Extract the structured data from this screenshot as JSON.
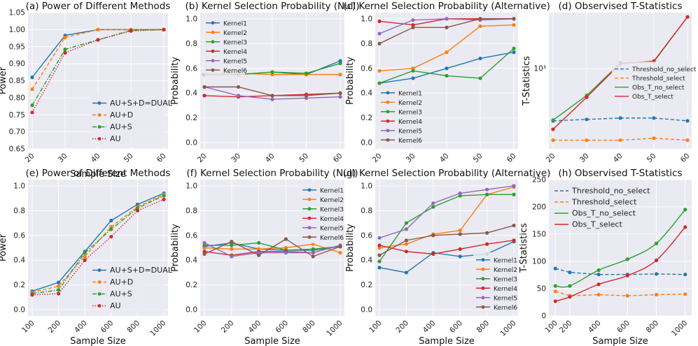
{
  "colors": {
    "blue": "#1f77b4",
    "orange": "#ff7f0e",
    "green": "#2ca02c",
    "red": "#d62728",
    "purple": "#9467bd",
    "brown": "#8c564b",
    "panel_bg": "#eaeaf2",
    "grid": "#ffffff"
  },
  "chart_data": [
    {
      "id": "a",
      "type": "line",
      "title": "(a) Power of Different Methods",
      "xlabel": "Sample Size",
      "ylabel": "Power",
      "categories": [
        "20",
        "30",
        "40",
        "50",
        "60"
      ],
      "ylim": [
        0.65,
        1.05
      ],
      "yticks": [
        "0.65",
        "0.70",
        "0.75",
        "0.80",
        "0.85",
        "0.90",
        "0.95",
        "1.00",
        "1.05"
      ],
      "legend_pos": "lower-right",
      "series": [
        {
          "name": "AU+S+D=DUAL",
          "color": "blue",
          "dash": "solid",
          "values": [
            0.86,
            0.983,
            1.0,
            1.0,
            1.0
          ]
        },
        {
          "name": "AU+D",
          "color": "orange",
          "dash": "dashed",
          "values": [
            0.825,
            0.977,
            1.0,
            1.0,
            1.0
          ]
        },
        {
          "name": "AU+S",
          "color": "green",
          "dash": "dashdot",
          "values": [
            0.778,
            0.942,
            0.97,
            0.998,
            1.0
          ]
        },
        {
          "name": "AU",
          "color": "red",
          "dash": "dotted",
          "values": [
            0.757,
            0.932,
            0.97,
            0.996,
            1.0
          ]
        }
      ]
    },
    {
      "id": "b",
      "type": "line",
      "title": "(b) Kernel Selection Probability (Null)",
      "xlabel": "",
      "ylabel": "Probability",
      "categories": [
        "20",
        "30",
        "40",
        "50",
        "60"
      ],
      "ylim": [
        -0.05,
        1.05
      ],
      "yticks": [
        "0.0",
        "0.2",
        "0.4",
        "0.6",
        "0.8",
        "1.0"
      ],
      "legend_pos": "upper-left",
      "series": [
        {
          "name": "Kernel1",
          "color": "blue",
          "values": [
            0.55,
            0.55,
            0.57,
            0.55,
            0.66
          ]
        },
        {
          "name": "Kernel2",
          "color": "orange",
          "values": [
            0.55,
            0.56,
            0.55,
            0.55,
            0.55
          ]
        },
        {
          "name": "Kernel3",
          "color": "green",
          "values": [
            0.55,
            0.55,
            0.57,
            0.56,
            0.64
          ]
        },
        {
          "name": "Kernel4",
          "color": "red",
          "values": [
            0.38,
            0.37,
            0.38,
            0.39,
            0.4
          ]
        },
        {
          "name": "Kernel5",
          "color": "purple",
          "values": [
            0.45,
            0.38,
            0.35,
            0.36,
            0.37
          ]
        },
        {
          "name": "Kernel6",
          "color": "brown",
          "values": [
            0.45,
            0.45,
            0.38,
            0.38,
            0.4
          ]
        }
      ]
    },
    {
      "id": "c",
      "type": "line",
      "title": "(c) Kernel Selection Probability (Alternative)",
      "xlabel": "",
      "ylabel": "Probability",
      "categories": [
        "20",
        "30",
        "40",
        "50",
        "60"
      ],
      "ylim": [
        -0.05,
        1.05
      ],
      "yticks": [
        "0.0",
        "0.2",
        "0.4",
        "0.6",
        "0.8",
        "1.0"
      ],
      "legend_pos": "lower-left",
      "series": [
        {
          "name": "Kernel1",
          "color": "blue",
          "values": [
            0.48,
            0.52,
            0.6,
            0.68,
            0.73
          ]
        },
        {
          "name": "Kernel2",
          "color": "orange",
          "values": [
            0.58,
            0.6,
            0.73,
            0.94,
            0.95
          ]
        },
        {
          "name": "Kernel3",
          "color": "green",
          "values": [
            0.48,
            0.58,
            0.54,
            0.52,
            0.76
          ]
        },
        {
          "name": "Kernel4",
          "color": "red",
          "values": [
            0.98,
            0.95,
            1.0,
            1.0,
            1.0
          ]
        },
        {
          "name": "Kernel5",
          "color": "purple",
          "values": [
            0.88,
            0.99,
            1.0,
            0.99,
            1.0
          ]
        },
        {
          "name": "Kernel6",
          "color": "brown",
          "values": [
            0.8,
            0.93,
            0.93,
            1.0,
            1.0
          ]
        }
      ]
    },
    {
      "id": "d",
      "type": "line",
      "title": "(d) Observised T-Statistics",
      "xlabel": "",
      "ylabel": "T-Statistics",
      "yscale": "log",
      "categories": [
        "20",
        "30",
        "40",
        "50",
        "60"
      ],
      "ylim": [
        240,
        2700
      ],
      "yticks_log": [
        {
          "label": "10³",
          "value": 1000
        }
      ],
      "legend_pos": "center-right",
      "series": [
        {
          "name": "Threshold_no_select",
          "color": "blue",
          "dash": "dashed",
          "values": [
            395,
            405,
            415,
            415,
            395
          ]
        },
        {
          "name": "Threshold_select",
          "color": "orange",
          "dash": "dashed",
          "values": [
            280,
            280,
            280,
            290,
            280
          ]
        },
        {
          "name": "Obs_T_no_select",
          "color": "green",
          "dash": "solid",
          "values": [
            400,
            620,
            1100,
            1130,
            2500
          ]
        },
        {
          "name": "Obs_T_select",
          "color": "red",
          "dash": "solid",
          "values": [
            340,
            600,
            1090,
            1140,
            2500
          ]
        }
      ]
    },
    {
      "id": "e",
      "type": "line",
      "title": "(e) Power of Different Methods",
      "xlabel": "Sample Size",
      "ylabel": "Power",
      "categories": [
        "100",
        "200",
        "400",
        "600",
        "800",
        "1000"
      ],
      "ylim": [
        -0.05,
        1.05
      ],
      "yticks": [
        "0.0",
        "0.2",
        "0.4",
        "0.6",
        "0.8",
        "1.0"
      ],
      "legend_pos": "lower-right",
      "series": [
        {
          "name": "AU+S+D=DUAL",
          "color": "blue",
          "dash": "solid",
          "values": [
            0.15,
            0.22,
            0.47,
            0.72,
            0.85,
            0.94
          ]
        },
        {
          "name": "AU+D",
          "color": "orange",
          "dash": "dashed",
          "values": [
            0.14,
            0.19,
            0.43,
            0.67,
            0.83,
            0.93
          ]
        },
        {
          "name": "AU+S",
          "color": "green",
          "dash": "dashdot",
          "values": [
            0.13,
            0.16,
            0.46,
            0.65,
            0.82,
            0.92
          ]
        },
        {
          "name": "AU",
          "color": "red",
          "dash": "dotted",
          "values": [
            0.12,
            0.13,
            0.4,
            0.59,
            0.8,
            0.89
          ]
        }
      ]
    },
    {
      "id": "f",
      "type": "line",
      "title": "(f) Kernel Selection Probability (Null)",
      "xlabel": "Sample Size",
      "ylabel": "Probability",
      "categories": [
        "100",
        "200",
        "400",
        "600",
        "800",
        "1000"
      ],
      "ylim": [
        -0.05,
        1.05
      ],
      "yticks": [
        "0.0",
        "0.2",
        "0.4",
        "0.6",
        "0.8",
        "1.0"
      ],
      "legend_pos": "upper-right",
      "series": [
        {
          "name": "Kernel1",
          "color": "blue",
          "values": [
            0.51,
            0.54,
            0.49,
            0.48,
            0.48,
            0.51
          ]
        },
        {
          "name": "Kernel2",
          "color": "orange",
          "values": [
            0.5,
            0.49,
            0.49,
            0.5,
            0.53,
            0.46
          ]
        },
        {
          "name": "Kernel3",
          "color": "green",
          "values": [
            0.52,
            0.52,
            0.54,
            0.48,
            0.49,
            0.51
          ]
        },
        {
          "name": "Kernel4",
          "color": "red",
          "values": [
            0.47,
            0.44,
            0.47,
            0.47,
            0.46,
            0.52
          ]
        },
        {
          "name": "Kernel5",
          "color": "purple",
          "values": [
            0.54,
            0.43,
            0.46,
            0.46,
            0.46,
            0.52
          ]
        },
        {
          "name": "Kernel6",
          "color": "brown",
          "values": [
            0.45,
            0.55,
            0.44,
            0.57,
            0.43,
            0.51
          ]
        }
      ]
    },
    {
      "id": "g",
      "type": "line",
      "title": "(g) Kernel Selection Probability (Alternative)",
      "xlabel": "Sample Size",
      "ylabel": "Probability",
      "categories": [
        "100",
        "200",
        "400",
        "600",
        "800",
        "1000"
      ],
      "ylim": [
        -0.05,
        1.05
      ],
      "yticks": [
        "0.0",
        "0.2",
        "0.4",
        "0.6",
        "0.8",
        "1.0"
      ],
      "legend_pos": "lower-right",
      "series": [
        {
          "name": "Kernel1",
          "color": "blue",
          "values": [
            0.34,
            0.3,
            0.46,
            0.43,
            0.45,
            0.55
          ]
        },
        {
          "name": "Kernel2",
          "color": "orange",
          "values": [
            0.5,
            0.53,
            0.61,
            0.64,
            0.93,
            0.99
          ]
        },
        {
          "name": "Kernel3",
          "color": "green",
          "values": [
            0.39,
            0.7,
            0.83,
            0.92,
            0.93,
            0.93
          ]
        },
        {
          "name": "Kernel4",
          "color": "red",
          "values": [
            0.52,
            0.47,
            0.45,
            0.49,
            0.53,
            0.56
          ]
        },
        {
          "name": "Kernel5",
          "color": "purple",
          "values": [
            0.58,
            0.65,
            0.86,
            0.94,
            0.97,
            1.0
          ]
        },
        {
          "name": "Kernel6",
          "color": "brown",
          "values": [
            0.44,
            0.56,
            0.6,
            0.61,
            0.62,
            0.68
          ]
        }
      ]
    },
    {
      "id": "h",
      "type": "line",
      "title": "(h) Observised T-Statistics",
      "xlabel": "Sample Size",
      "ylabel": "T-Statistics",
      "x": [
        100,
        200,
        400,
        600,
        800,
        1000
      ],
      "categories": [
        "100",
        "200",
        "400",
        "600",
        "800",
        "1000"
      ],
      "xlim": [
        55,
        1045
      ],
      "ylim": [
        0,
        250
      ],
      "yticks": [
        "0",
        "50",
        "100",
        "150",
        "200",
        "250"
      ],
      "legend_pos": "upper-left",
      "series": [
        {
          "name": "Threshold_no_select",
          "color": "blue",
          "dash": "dashed",
          "values": [
            87,
            80,
            76,
            76,
            77,
            76
          ]
        },
        {
          "name": "Threshold_select",
          "color": "orange",
          "dash": "dashed",
          "values": [
            45,
            37,
            39,
            37,
            39,
            40
          ]
        },
        {
          "name": "Obs_T_no_select",
          "color": "green",
          "dash": "solid",
          "values": [
            55,
            55,
            84,
            104,
            133,
            195
          ]
        },
        {
          "name": "Obs_T_select",
          "color": "red",
          "dash": "solid",
          "values": [
            27,
            35,
            58,
            74,
            102,
            163
          ]
        }
      ]
    }
  ]
}
